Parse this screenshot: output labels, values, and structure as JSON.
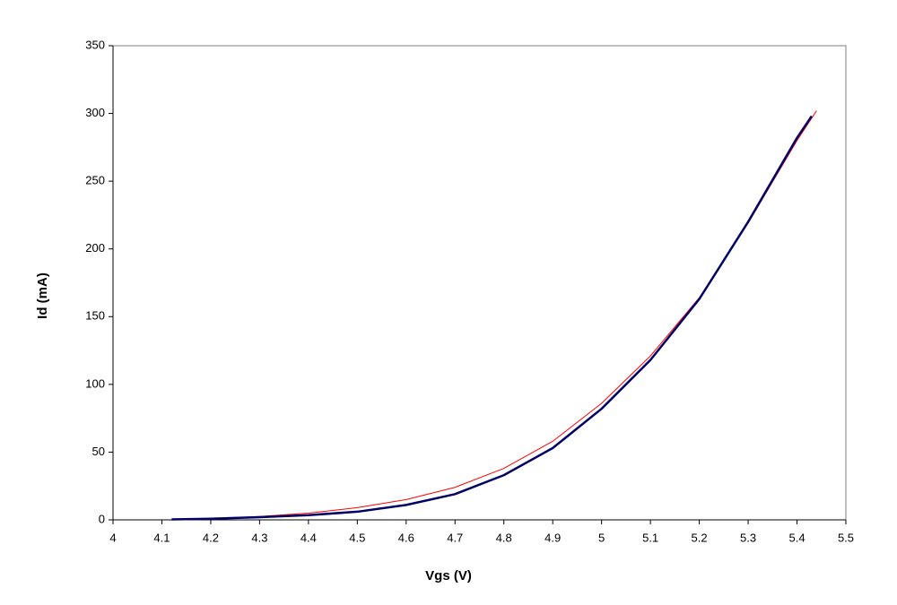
{
  "chart_data": {
    "type": "line",
    "x_label": "Vgs   (V)",
    "y_label": "Id   (mA)",
    "xlim": [
      4,
      5.5
    ],
    "xticks": [
      4,
      4.1,
      4.2,
      4.3,
      4.4,
      4.5,
      4.6,
      4.7,
      4.8,
      4.9,
      5,
      5.1,
      5.2,
      5.3,
      5.4,
      5.5
    ],
    "ylim": [
      0,
      350
    ],
    "yticks": [
      0,
      50,
      100,
      150,
      200,
      250,
      300,
      350
    ],
    "grid": false,
    "series": [
      {
        "color": "#ff0000",
        "width": 1,
        "x": [
          4.22,
          4.3,
          4.4,
          4.5,
          4.6,
          4.7,
          4.8,
          4.9,
          5.0,
          5.1,
          5.2,
          5.3,
          5.4,
          5.44
        ],
        "values": [
          1.2,
          2.5,
          5,
          9,
          15,
          24,
          38,
          58,
          86,
          121,
          164,
          219,
          280,
          302
        ]
      },
      {
        "color": "#000066",
        "width": 2.5,
        "x": [
          4.12,
          4.2,
          4.3,
          4.4,
          4.5,
          4.6,
          4.7,
          4.8,
          4.9,
          5.0,
          5.1,
          5.2,
          5.3,
          5.4,
          5.43
        ],
        "values": [
          0.3,
          0.8,
          2,
          3.5,
          6,
          11,
          19,
          33,
          53,
          82,
          118,
          163,
          220,
          282,
          298
        ]
      }
    ]
  }
}
